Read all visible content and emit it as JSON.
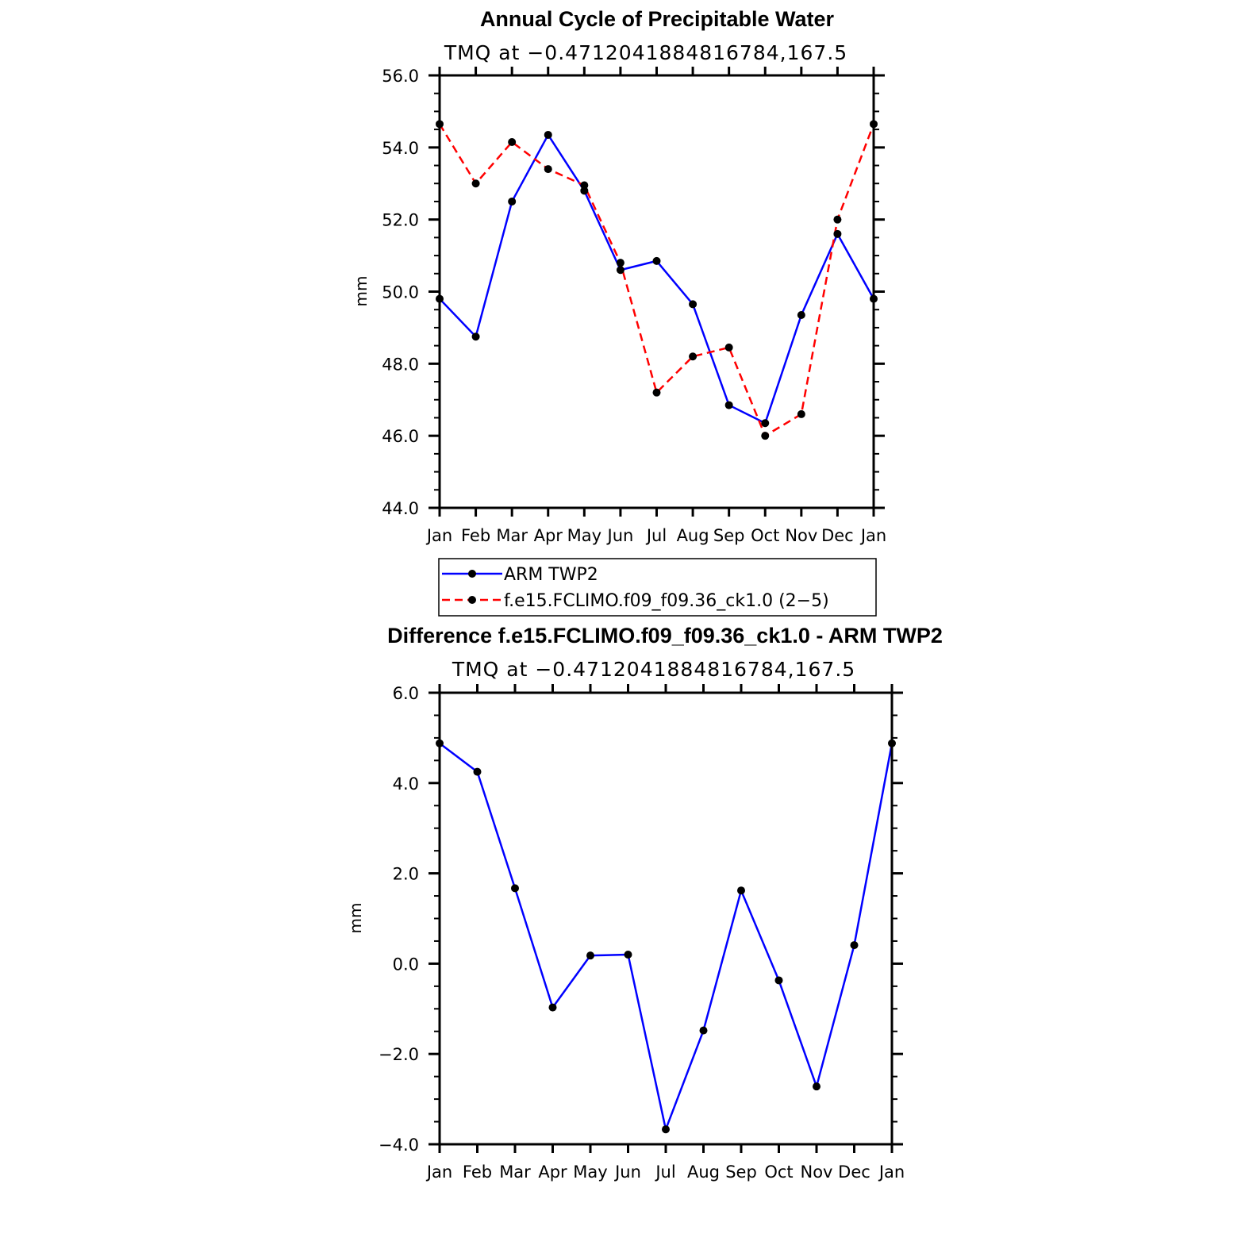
{
  "chart_data": [
    {
      "type": "line",
      "title": "Annual Cycle of Precipitable Water",
      "subtitle": "TMQ at −0.4712041884816784,167.5",
      "xlabel": "",
      "ylabel": "mm",
      "categories": [
        "Jan",
        "Feb",
        "Mar",
        "Apr",
        "May",
        "Jun",
        "Jul",
        "Aug",
        "Sep",
        "Oct",
        "Nov",
        "Dec",
        "Jan"
      ],
      "ylim": [
        44.0,
        56.0
      ],
      "yticks": [
        44.0,
        46.0,
        48.0,
        50.0,
        52.0,
        54.0,
        56.0
      ],
      "ytick_labels": [
        "44.0",
        "46.0",
        "48.0",
        "50.0",
        "52.0",
        "54.0",
        "56.0"
      ],
      "series": [
        {
          "name": "ARM TWP2",
          "color": "#0000ff",
          "dash": "solid",
          "values": [
            49.8,
            48.75,
            52.5,
            54.35,
            52.8,
            50.6,
            50.85,
            49.65,
            46.85,
            46.35,
            49.35,
            51.6,
            49.8
          ]
        },
        {
          "name": "f.e15.FCLIMO.f09_f09.36_ck1.0 (2−5)",
          "color": "#ff0000",
          "dash": "dashed",
          "values": [
            54.65,
            53.0,
            54.15,
            53.4,
            52.95,
            50.8,
            47.2,
            48.2,
            48.45,
            46.0,
            46.6,
            52.0,
            54.65
          ]
        }
      ],
      "legend": "bottom"
    },
    {
      "type": "line",
      "title": "Difference f.e15.FCLIMO.f09_f09.36_ck1.0 - ARM TWP2",
      "subtitle": "TMQ at −0.4712041884816784,167.5",
      "xlabel": "",
      "ylabel": "mm",
      "categories": [
        "Jan",
        "Feb",
        "Mar",
        "Apr",
        "May",
        "Jun",
        "Jul",
        "Aug",
        "Sep",
        "Oct",
        "Nov",
        "Dec",
        "Jan"
      ],
      "ylim": [
        -4.0,
        6.0
      ],
      "yticks": [
        -4.0,
        -2.0,
        0.0,
        2.0,
        4.0,
        6.0
      ],
      "ytick_labels": [
        "−4.0",
        "−2.0",
        "0.0",
        "2.0",
        "4.0",
        "6.0"
      ],
      "series": [
        {
          "name": "Difference",
          "color": "#0000ff",
          "dash": "solid",
          "values": [
            4.88,
            4.25,
            1.67,
            -0.97,
            0.18,
            0.2,
            -3.67,
            -1.48,
            1.62,
            -0.37,
            -2.72,
            0.41,
            4.88
          ]
        }
      ]
    }
  ]
}
